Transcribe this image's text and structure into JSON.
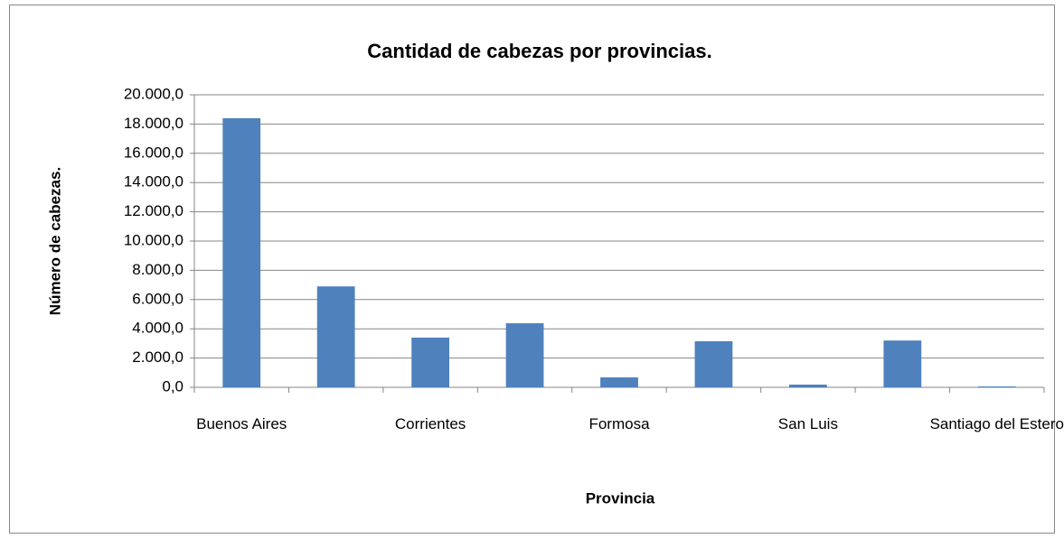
{
  "chart_data": {
    "type": "bar",
    "title": "Cantidad de cabezas por provincias.",
    "x_label": "Provincia",
    "y_label": "Número de cabezas.",
    "categories": [
      "Buenos Aires",
      null,
      "Corrientes",
      null,
      "Formosa",
      null,
      "San Luis",
      null,
      "Santiago del Estero"
    ],
    "values": [
      18400,
      6900,
      3400,
      4380,
      680,
      3150,
      185,
      3200,
      60
    ],
    "color": "#4f81bd",
    "ylim": [
      0,
      20000
    ],
    "yticks": [
      {
        "value": 0,
        "label": "0,0"
      },
      {
        "value": 2000,
        "label": "2.000,0"
      },
      {
        "value": 4000,
        "label": "4.000,0"
      },
      {
        "value": 6000,
        "label": "6.000,0"
      },
      {
        "value": 8000,
        "label": "8.000,0"
      },
      {
        "value": 10000,
        "label": "10.000,0"
      },
      {
        "value": 12000,
        "label": "12.000,0"
      },
      {
        "value": 14000,
        "label": "14.000,0"
      },
      {
        "value": 16000,
        "label": "16.000,0"
      },
      {
        "value": 18000,
        "label": "18.000,0"
      },
      {
        "value": 20000,
        "label": "20.000,0"
      }
    ],
    "grid": true
  }
}
